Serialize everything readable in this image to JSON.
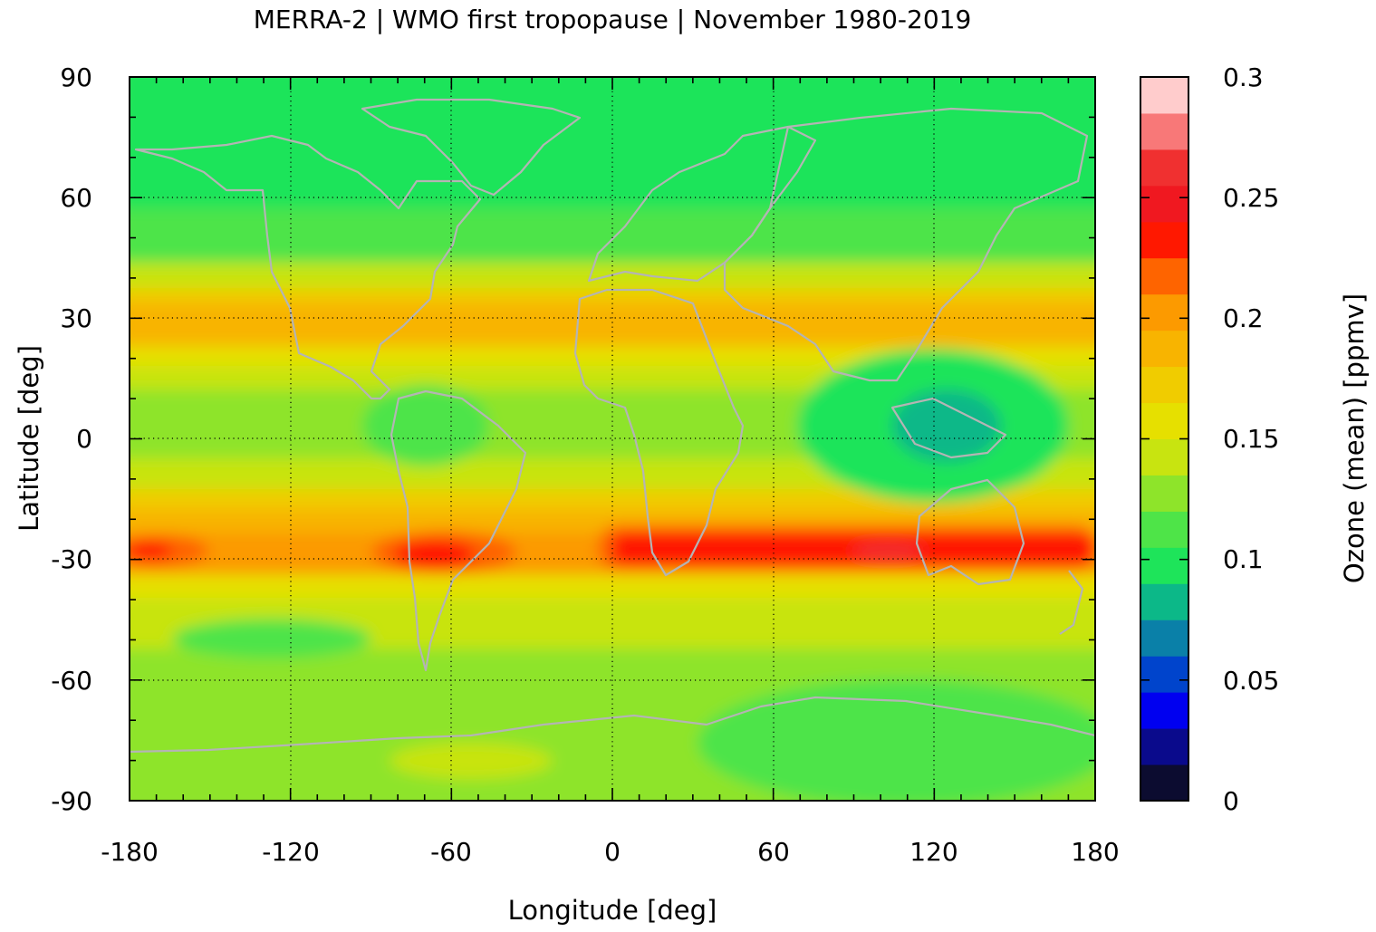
{
  "chart_data": {
    "type": "heatmap",
    "title": "MERRA-2 | WMO first tropopause | November 1980-2019",
    "xlabel": "Longitude [deg]",
    "ylabel": "Latitude [deg]",
    "colorbar_label": "Ozone (mean) [ppmv]",
    "xlim": [
      -180,
      180
    ],
    "ylim": [
      -90,
      90
    ],
    "x_ticks": [
      "-180",
      "-120",
      "-60",
      "0",
      "60",
      "120",
      "180"
    ],
    "y_ticks": [
      "90",
      "60",
      "30",
      "0",
      "-30",
      "-60",
      "-90"
    ],
    "colorbar_ticks": [
      "0.3",
      "0.25",
      "0.2",
      "0.15",
      "0.1",
      "0.05",
      "0"
    ],
    "colorbar_range": [
      0,
      0.3
    ],
    "colorbar_levels": [
      {
        "from": 0.0,
        "to": 0.015,
        "color": "#0c0c30"
      },
      {
        "from": 0.015,
        "to": 0.03,
        "color": "#0a0a8c"
      },
      {
        "from": 0.03,
        "to": 0.045,
        "color": "#0000f0"
      },
      {
        "from": 0.045,
        "to": 0.06,
        "color": "#0044cc"
      },
      {
        "from": 0.06,
        "to": 0.075,
        "color": "#0a80a8"
      },
      {
        "from": 0.075,
        "to": 0.09,
        "color": "#0cb888"
      },
      {
        "from": 0.09,
        "to": 0.105,
        "color": "#1ee45a"
      },
      {
        "from": 0.105,
        "to": 0.12,
        "color": "#4ee448"
      },
      {
        "from": 0.12,
        "to": 0.135,
        "color": "#8ee42a"
      },
      {
        "from": 0.135,
        "to": 0.15,
        "color": "#c8e410"
      },
      {
        "from": 0.15,
        "to": 0.165,
        "color": "#e6e000"
      },
      {
        "from": 0.165,
        "to": 0.18,
        "color": "#f0cc00"
      },
      {
        "from": 0.18,
        "to": 0.195,
        "color": "#f8b400"
      },
      {
        "from": 0.195,
        "to": 0.21,
        "color": "#fc9a00"
      },
      {
        "from": 0.21,
        "to": 0.225,
        "color": "#fe6400"
      },
      {
        "from": 0.225,
        "to": 0.24,
        "color": "#ff1800"
      },
      {
        "from": 0.24,
        "to": 0.255,
        "color": "#f01820"
      },
      {
        "from": 0.255,
        "to": 0.27,
        "color": "#f03030"
      },
      {
        "from": 0.27,
        "to": 0.285,
        "color": "#f87878"
      },
      {
        "from": 0.285,
        "to": 0.3,
        "color": "#ffcccc"
      }
    ],
    "field_description_bands": [
      {
        "lat": 90,
        "ozone": 0.1
      },
      {
        "lat": 60,
        "ozone": 0.1
      },
      {
        "lat": 45,
        "ozone": 0.13
      },
      {
        "lat": 30,
        "ozone": 0.185
      },
      {
        "lat": 15,
        "ozone": 0.155
      },
      {
        "lat": 0,
        "ozone": 0.12
      },
      {
        "lat": -15,
        "ozone": 0.15
      },
      {
        "lat": -30,
        "ozone": 0.23
      },
      {
        "lat": -45,
        "ozone": 0.145
      },
      {
        "lat": -60,
        "ozone": 0.125
      },
      {
        "lat": -90,
        "ozone": 0.13
      }
    ],
    "grid": true,
    "legend": "colorbar-right"
  }
}
